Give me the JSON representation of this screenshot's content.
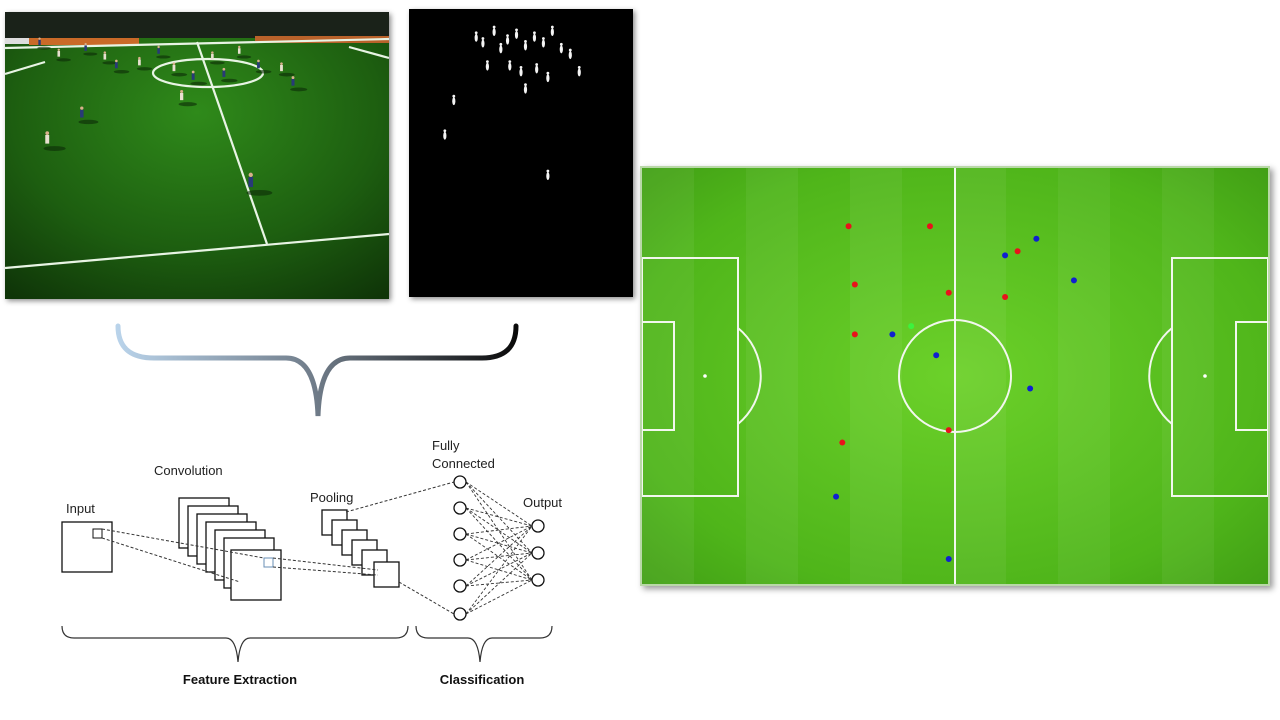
{
  "cnn": {
    "input_label": "Input",
    "convolution_label": "Convolution",
    "pooling_label": "Pooling",
    "fully_connected_line1": "Fully",
    "fully_connected_line2": "Connected",
    "output_label": "Output",
    "feature_extraction_label": "Feature Extraction",
    "classification_label": "Classification"
  },
  "colors": {
    "team_red": "#e8121b",
    "team_blue": "#1020d0",
    "ball_green": "#3df23d",
    "pitch": "#5cc41d",
    "camera_pitch": "#1f5a10"
  },
  "tactical_map": {
    "red_players": [
      [
        0.33,
        0.14
      ],
      [
        0.46,
        0.14
      ],
      [
        0.34,
        0.28
      ],
      [
        0.49,
        0.3
      ],
      [
        0.34,
        0.4
      ],
      [
        0.49,
        0.63
      ],
      [
        0.32,
        0.66
      ],
      [
        0.6,
        0.2
      ],
      [
        0.58,
        0.31
      ]
    ],
    "blue_players": [
      [
        0.63,
        0.17
      ],
      [
        0.58,
        0.21
      ],
      [
        0.69,
        0.27
      ],
      [
        0.4,
        0.4
      ],
      [
        0.47,
        0.45
      ],
      [
        0.62,
        0.53
      ],
      [
        0.31,
        0.79
      ],
      [
        0.49,
        0.94
      ]
    ],
    "ball": [
      [
        0.43,
        0.38
      ]
    ]
  },
  "mask_blobs": [
    [
      0.3,
      0.1
    ],
    [
      0.33,
      0.12
    ],
    [
      0.38,
      0.08
    ],
    [
      0.41,
      0.14
    ],
    [
      0.44,
      0.11
    ],
    [
      0.48,
      0.09
    ],
    [
      0.52,
      0.13
    ],
    [
      0.56,
      0.1
    ],
    [
      0.6,
      0.12
    ],
    [
      0.64,
      0.08
    ],
    [
      0.68,
      0.14
    ],
    [
      0.35,
      0.2
    ],
    [
      0.45,
      0.2
    ],
    [
      0.5,
      0.22
    ],
    [
      0.57,
      0.21
    ],
    [
      0.62,
      0.24
    ],
    [
      0.72,
      0.16
    ],
    [
      0.76,
      0.22
    ],
    [
      0.52,
      0.28
    ],
    [
      0.2,
      0.32
    ],
    [
      0.16,
      0.44
    ],
    [
      0.62,
      0.58
    ]
  ],
  "camera_players": [
    [
      0.09,
      0.11
    ],
    [
      0.14,
      0.15
    ],
    [
      0.21,
      0.13
    ],
    [
      0.26,
      0.16
    ],
    [
      0.29,
      0.19
    ],
    [
      0.35,
      0.18
    ],
    [
      0.4,
      0.14
    ],
    [
      0.44,
      0.2
    ],
    [
      0.49,
      0.23
    ],
    [
      0.54,
      0.16
    ],
    [
      0.57,
      0.22
    ],
    [
      0.61,
      0.14
    ],
    [
      0.66,
      0.19
    ],
    [
      0.72,
      0.2
    ],
    [
      0.75,
      0.25
    ],
    [
      0.46,
      0.3
    ],
    [
      0.2,
      0.36
    ],
    [
      0.11,
      0.45
    ],
    [
      0.64,
      0.6
    ]
  ]
}
